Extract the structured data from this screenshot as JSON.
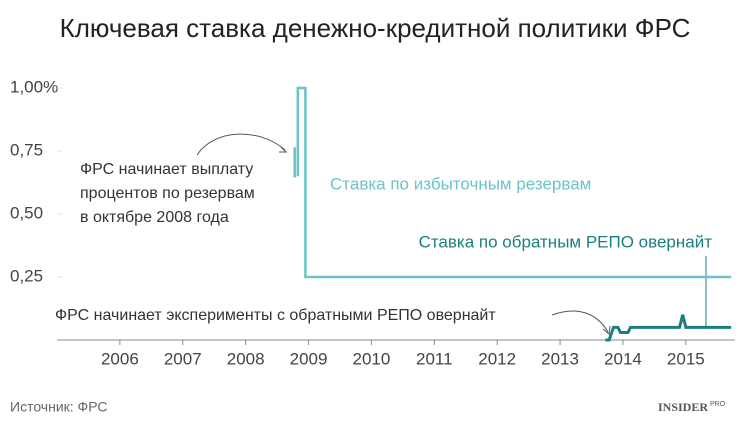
{
  "chart_data": {
    "type": "line",
    "title": "Ключевая ставка денежно-кредитной политики ФРС",
    "xlim": [
      2005,
      2015.75
    ],
    "xticks": [
      2006,
      2007,
      2008,
      2009,
      2010,
      2011,
      2012,
      2013,
      2014,
      2015
    ],
    "ylim": [
      0,
      1
    ],
    "yticks": [
      {
        "value": 1,
        "label": "1,00%"
      },
      {
        "value": 0.75,
        "label": "0,75"
      },
      {
        "value": 0.5,
        "label": "0,50"
      },
      {
        "value": 0.25,
        "label": "0,25"
      }
    ],
    "series": [
      {
        "name": "Ставка по избыточным резервам",
        "color": "#6cc3c8",
        "x": [
          2008.76,
          2008.78,
          2008.78,
          2008.8,
          2008.82,
          2008.83,
          2008.83,
          2008.95,
          2008.95,
          2015.72
        ],
        "values": [
          0.76,
          0.76,
          0.65,
          0.65,
          null,
          0.65,
          1.0,
          1.0,
          0.25,
          0.25
        ]
      },
      {
        "name": "Ставка по обратным РЕПО овернайт",
        "color": "#1a7f7f",
        "x": [
          2013.72,
          2013.78,
          2013.85,
          2013.92,
          2013.96,
          2014.08,
          2014.12,
          2014.9,
          2014.95,
          2015.0,
          2015.72
        ],
        "values": [
          0,
          0,
          0.05,
          0.05,
          0.03,
          0.03,
          0.05,
          0.05,
          0.1,
          0.05,
          0.05
        ]
      }
    ],
    "annotations": [
      {
        "lines": [
          "ФРС начинает выплату",
          "процентов по резервам",
          "в октябре 2008 года"
        ]
      },
      {
        "lines": [
          "ФРС начинает эксперименты с обратными РЕПО овернайт"
        ]
      }
    ]
  },
  "source": "Источник: ФРС",
  "logo": {
    "text": "INSIDER",
    "sup": "PRO"
  }
}
